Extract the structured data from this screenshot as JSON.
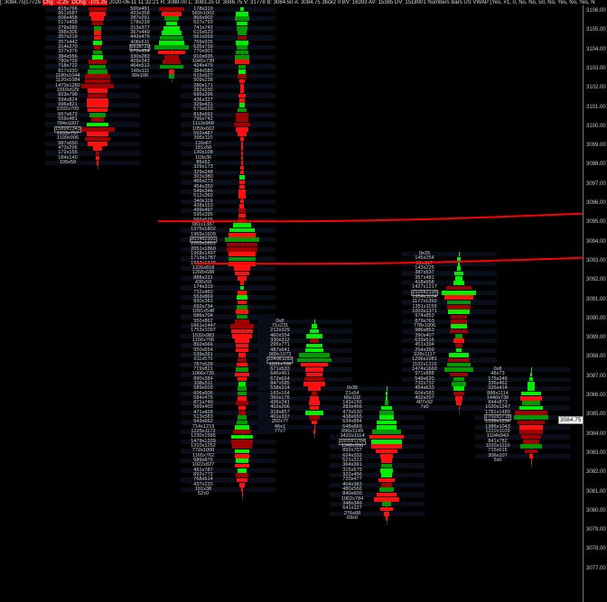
{
  "header": {
    "prefix": "[: 3084.75|17726",
    "chg": "Chg: -2.25",
    "dchg": "DChg: -101.25",
    "rest": "2020-06-11 11:32:21 H: 3088.00 L: 3083.25 O: 3086.75 V: 31778 B: 3084.50 A: 3084.75 3tick2 0 BV: 16393 AV: 15385 DV: 1518001 Numbers Bars US VWAP  (Yes, #1, 0, No, No, 50, No, Yes, No, Yes, N"
  },
  "colors": {
    "bg": "#000000",
    "bright_green": "#00ee00",
    "dark_green": "#009900",
    "bright_red": "#ff1010",
    "dark_red": "#a00000",
    "level_line": "#ff0000"
  },
  "axis": {
    "ticks": [
      "3106.00",
      "3105.00",
      "3104.00",
      "3103.00",
      "3102.00",
      "3101.00",
      "3100.00",
      "3099.00",
      "3098.00",
      "3097.00",
      "3096.00",
      "3095.00",
      "3094.00",
      "3093.00",
      "3092.00",
      "3091.00",
      "3090.00",
      "3089.00",
      "3088.00",
      "3087.00",
      "3086.00",
      "3085.00",
      "3084.00",
      "3083.00",
      "3082.00",
      "3081.00",
      "3080.00",
      "3079.00",
      "3078.00",
      "3077.00"
    ],
    "current_price": "3084.75",
    "current_value": 3084.75
  },
  "levels": [
    {
      "price_left": 3095.1,
      "price_right": 3095.5
    },
    {
      "price_left": 3092.9,
      "price_right": 3093.2
    }
  ],
  "chart_data": {
    "type": "footprint",
    "tick_size": 0.25,
    "columns": [
      {
        "top": 3106.25,
        "poc": "1589x1343",
        "rows": [
          "815x766",
          "861x587",
          "606x458",
          "517x458",
          "279x282",
          "388x306",
          "357x219",
          "357x442",
          "314x270",
          "327x376",
          "384x556",
          "780x709",
          "718x722",
          "817x930",
          "1180x1044",
          "1120x1084",
          "1473x1282",
          "1010x629",
          "823x798",
          "994x824",
          "996x821",
          "1032x709",
          "657x673",
          "559x481",
          "784x1007",
          "1589x1343",
          "1103x757",
          "1100x996",
          "987x650",
          "473x296",
          "172x155",
          "184x140",
          "105x59"
        ]
      },
      {
        "top": 3106.25,
        "poc": "653x729",
        "rows": [
          "500x491",
          "433x358",
          "287x291",
          "178x239",
          "313x377",
          "367x449",
          "443x476",
          "408x611",
          "653x729",
          "670x454",
          "330x283",
          "409x343",
          "464x512",
          "140x111",
          "90x106"
        ]
      },
      {
        "top": 3106.25,
        "poc": "2014x2391",
        "rows": [
          "178x319",
          "569x1002",
          "865x902",
          "637x793",
          "741x742",
          "615x629",
          "561x559",
          "769x935",
          "635x739",
          "770x901",
          "910x935",
          "1045x730",
          "424x479",
          "384x580",
          "615x527",
          "509x238",
          "280x171",
          "282x230",
          "695x296",
          "436x327",
          "329x431",
          "579x620",
          "818x692",
          "796x742",
          "1113x968",
          "1059x662",
          "592x487",
          "395x110",
          "116x67",
          "181x58",
          "130x108",
          "103x36",
          "85x52",
          "329x173",
          "329x248",
          "303x380",
          "465x273",
          "454x350",
          "549x346",
          "512x360",
          "340x119",
          "428x153",
          "499x497",
          "595x395",
          "565x525",
          "981x1387",
          "1375x1802",
          "1969x1609",
          "2014x2391",
          "2205x1851",
          "2051x1860",
          "1968x1497",
          "1713x1787",
          "1937x1479",
          "1226x818",
          "1268x688",
          "888x231",
          "430x59",
          "174x319",
          "732x460",
          "553x869",
          "830x383",
          "692x734",
          "1091x548",
          "686x704",
          "950x862",
          "1661x1447",
          "1753x1097",
          "1532x983",
          "1156x706",
          "892x666",
          "950x654",
          "539x391",
          "611x570",
          "787x528",
          "719x821",
          "1066x735",
          "890x384",
          "338x511",
          "589x609",
          "606x606",
          "584x476",
          "871x740",
          "569x403",
          "471x428",
          "513x583",
          "643x662",
          "714x1219",
          "1225x1172",
          "1230x1585",
          "1479x1339",
          "1310x1252",
          "772x1000",
          "1165x762",
          "689x875",
          "1022x827",
          "451x787",
          "892x772",
          "768x614",
          "437x220",
          "101x38",
          "52x0"
        ]
      },
      {
        "top": 3090.0,
        "poc": "1049x1182",
        "rows": [
          "0x8",
          "71x231",
          "212x329",
          "460x554",
          "330x312",
          "295x771",
          "487x641",
          "909x1073",
          "1049x1182",
          "1031x708",
          "671x533",
          "646x461",
          "672x624",
          "847x585",
          "538x314",
          "165x164",
          "360x176",
          "436x241",
          "402x206",
          "318x857",
          "401x337",
          "292x77",
          "46x1",
          "77x7"
        ]
      },
      {
        "top": 3086.5,
        "poc": "1005x1264",
        "rows": [
          "0x36",
          "21x54",
          "65x102",
          "143x156",
          "283x456",
          "473x530",
          "438x655",
          "634x884",
          "648x869",
          "996x1149",
          "1422x1114",
          "1005x1264",
          "1348x956",
          "892x707",
          "624x332",
          "521x313",
          "364x391",
          "315x579",
          "322x456",
          "720x477",
          "404x383",
          "480x566",
          "840x600",
          "1062x784",
          "348x349",
          "641x327",
          "276x68",
          "69x0"
        ]
      },
      {
        "top": 3093.5,
        "poc": "1526x2135",
        "rows": [
          "0x25",
          "145x254",
          "51x117",
          "143x225",
          "387x537",
          "357x481",
          "418x658",
          "1427x1217",
          "1526x2135",
          "1954x1104",
          "1177x1399",
          "1351x1159",
          "1003x1371",
          "974x853",
          "879x763",
          "778x1006",
          "986x853",
          "390x407",
          "633x516",
          "451x394",
          "254x399",
          "928x1117",
          "1296x1081",
          "1102x1316",
          "1474x1660",
          "971x888",
          "549x620",
          "732x732",
          "454x633",
          "604x583",
          "402x297",
          "407x92",
          "7x0"
        ]
      },
      {
        "top": 3087.5,
        "poc": "1702x1718",
        "rows": [
          "0x8",
          "48x73",
          "175x246",
          "336x462",
          "326x414",
          "888x1114",
          "1440x736",
          "844x873",
          "1020x1247",
          "1781x1489",
          "1702x1718",
          "1339x1296",
          "1386x1043",
          "1222x1109",
          "1104x943",
          "841x782",
          "1015x1110",
          "715x615",
          "306x107",
          "5x0"
        ]
      }
    ]
  }
}
